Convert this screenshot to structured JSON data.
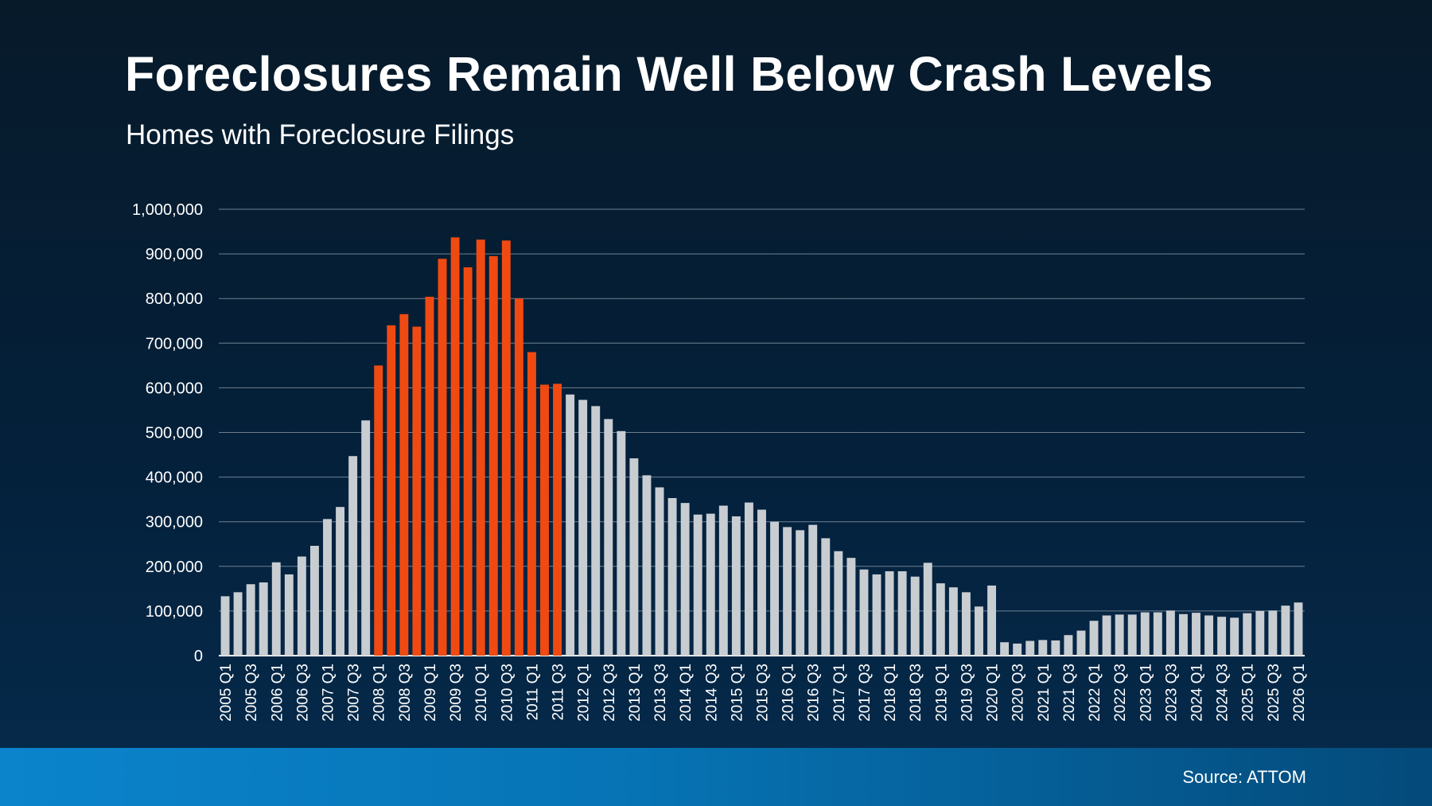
{
  "title": "Foreclosures Remain Well Below Crash Levels",
  "subtitle": "Homes with Foreclosure Filings",
  "source": "Source: ATTOM",
  "colors": {
    "highlight": "#f04a12",
    "default": "#c8cdd2",
    "grid": "#8a98a6",
    "footer": "#0b84cc"
  },
  "chart_data": {
    "type": "bar",
    "title": "",
    "xlabel": "",
    "ylabel": "",
    "ylim": [
      0,
      1000000
    ],
    "yticks": [
      0,
      100000,
      200000,
      300000,
      400000,
      500000,
      600000,
      700000,
      800000,
      900000,
      1000000
    ],
    "ytick_labels": [
      "0",
      "100,000",
      "200,000",
      "300,000",
      "400,000",
      "500,000",
      "600,000",
      "700,000",
      "800,000",
      "900,000",
      "1,000,000"
    ],
    "grid": true,
    "categories": [
      "2005 Q1",
      "2005 Q2",
      "2005 Q3",
      "2005 Q4",
      "2006 Q1",
      "2006 Q2",
      "2006 Q3",
      "2006 Q4",
      "2007 Q1",
      "2007 Q2",
      "2007 Q3",
      "2007 Q4",
      "2008 Q1",
      "2008 Q2",
      "2008 Q3",
      "2008 Q4",
      "2009 Q1",
      "2009 Q2",
      "2009 Q3",
      "2009 Q4",
      "2010 Q1",
      "2010 Q2",
      "2010 Q3",
      "2010 Q4",
      "2011 Q1",
      "2011 Q2",
      "2011 Q3",
      "2011 Q4",
      "2012 Q1",
      "2012 Q2",
      "2012 Q3",
      "2012 Q4",
      "2013 Q1",
      "2013 Q2",
      "2013 Q3",
      "2013 Q4",
      "2014 Q1",
      "2014 Q2",
      "2014 Q3",
      "2014 Q4",
      "2015 Q1",
      "2015 Q2",
      "2015 Q3",
      "2015 Q4",
      "2016 Q1",
      "2016 Q2",
      "2016 Q3",
      "2016 Q4",
      "2017 Q1",
      "2017 Q2",
      "2017 Q3",
      "2017 Q4",
      "2018 Q1",
      "2018 Q2",
      "2018 Q3",
      "2018 Q4",
      "2019 Q1",
      "2019 Q2",
      "2019 Q3",
      "2019 Q4",
      "2020 Q1",
      "2020 Q2",
      "2020 Q3",
      "2020 Q4",
      "2021 Q1",
      "2021 Q2",
      "2021 Q3",
      "2021 Q4",
      "2022 Q1",
      "2022 Q2",
      "2022 Q3",
      "2022 Q4",
      "2023 Q1",
      "2023 Q2",
      "2023 Q3",
      "2023 Q4",
      "2024 Q1",
      "2024 Q2",
      "2024 Q3",
      "2024 Q4",
      "2025 Q1",
      "2025 Q2",
      "2025 Q3",
      "2025 Q4",
      "2026 Q1"
    ],
    "visible_tick_labels": [
      "2005 Q1",
      "2005 Q3",
      "2006 Q1",
      "2006 Q3",
      "2007 Q1",
      "2007 Q3",
      "2008 Q1",
      "2008 Q3",
      "2009 Q1",
      "2009 Q3",
      "2010 Q1",
      "2010 Q3",
      "2011 Q1",
      "2011 Q3",
      "2012 Q1",
      "2012 Q3",
      "2013 Q1",
      "2013 Q3",
      "2014 Q1",
      "2014 Q3",
      "2015 Q1",
      "2015 Q3",
      "2016 Q1",
      "2016 Q3",
      "2017 Q1",
      "2017 Q3",
      "2018 Q1",
      "2018 Q3",
      "2019 Q1",
      "2019 Q3",
      "2020 Q1",
      "2020 Q3",
      "2021 Q1",
      "2021 Q3",
      "2022 Q1",
      "2022 Q3",
      "2023 Q1",
      "2023 Q3",
      "2024 Q1",
      "2024 Q3",
      "2025 Q1",
      "2025 Q3",
      "2026 Q1"
    ],
    "values": [
      133000,
      142000,
      160000,
      164000,
      209000,
      182000,
      222000,
      246000,
      306000,
      333000,
      447000,
      527000,
      650000,
      740000,
      765000,
      737000,
      804000,
      889000,
      937000,
      870000,
      932000,
      895000,
      930000,
      800000,
      680000,
      607000,
      609000,
      585000,
      573000,
      559000,
      530000,
      503000,
      442000,
      404000,
      377000,
      353000,
      342000,
      316000,
      318000,
      336000,
      312000,
      343000,
      327000,
      300000,
      288000,
      281000,
      293000,
      263000,
      234000,
      219000,
      193000,
      182000,
      189000,
      189000,
      177000,
      208000,
      162000,
      153000,
      142000,
      110000,
      157000,
      30000,
      27000,
      33000,
      35000,
      34000,
      46000,
      56000,
      78000,
      90000,
      92000,
      92000,
      97000,
      97000,
      101000,
      93000,
      96000,
      90000,
      87000,
      85000,
      95000,
      100000,
      101000,
      112000,
      119000
    ],
    "highlighted_categories": [
      "2008 Q1",
      "2008 Q2",
      "2008 Q3",
      "2008 Q4",
      "2009 Q1",
      "2009 Q2",
      "2009 Q3",
      "2009 Q4",
      "2010 Q1",
      "2010 Q2",
      "2010 Q3",
      "2010 Q4",
      "2011 Q1",
      "2011 Q2",
      "2011 Q3"
    ]
  }
}
